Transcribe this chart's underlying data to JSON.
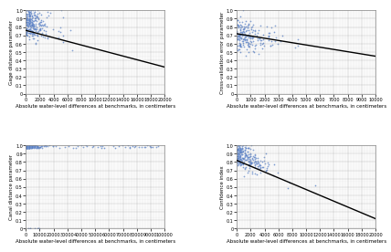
{
  "fig_width": 4.3,
  "fig_height": 2.78,
  "dpi": 100,
  "background_color": "#ffffff",
  "grid_color": "#c8c8c8",
  "dot_color": "#4472c4",
  "line_color": "#000000",
  "dot_size": 1.5,
  "dot_alpha": 0.8,
  "subplots": [
    {
      "ylabel": "Gage distance parameter",
      "xlabel": "Absolute water-level differences at benchmarks, in centimeters",
      "xlim": [
        0,
        20000
      ],
      "ylim": [
        0,
        1
      ],
      "ytick_count": 11,
      "xticks": [
        0,
        2000,
        4000,
        6000,
        8000,
        10000,
        12000,
        14000,
        16000,
        18000,
        20000
      ],
      "trend_start_y": 0.76,
      "trend_end_y": 0.32,
      "n_points": 250,
      "x_scale": 1200,
      "y_intercept": 0.88,
      "y_slope": -2.8e-05,
      "y_noise": 0.1
    },
    {
      "ylabel": "Cross-validation error parameter",
      "xlabel": "Absolute water-level differences at benchmarks, in centimeters",
      "xlim": [
        0,
        10000
      ],
      "ylim": [
        0,
        1
      ],
      "ytick_count": 11,
      "xticks": [
        0,
        1000,
        2000,
        3000,
        4000,
        5000,
        6000,
        7000,
        8000,
        9000,
        10000
      ],
      "trend_start_y": 0.72,
      "trend_end_y": 0.45,
      "n_points": 200,
      "x_scale": 800,
      "y_intercept": 0.72,
      "y_slope": -2.7e-05,
      "y_noise": 0.09
    },
    {
      "ylabel": "Canal distance parameter",
      "xlabel": "Absolute water-level differences at benchmarks, in centimeters",
      "xlim": [
        0,
        100000
      ],
      "ylim": [
        0,
        1
      ],
      "ytick_count": 11,
      "xticks": [
        0,
        10000,
        20000,
        30000,
        40000,
        50000,
        60000,
        70000,
        80000,
        90000,
        100000
      ],
      "has_trend": false
    },
    {
      "ylabel": "Confidence index",
      "xlabel": "Absolute water-level differences at benchmarks, in centimeters",
      "xlim": [
        0,
        20000
      ],
      "ylim": [
        0,
        1
      ],
      "ytick_count": 11,
      "xticks": [
        0,
        2000,
        4000,
        6000,
        8000,
        10000,
        12000,
        14000,
        16000,
        18000,
        20000
      ],
      "trend_start_y": 0.82,
      "trend_end_y": 0.12,
      "n_points": 250,
      "x_scale": 1500,
      "y_intercept": 0.9,
      "y_slope": -3.8e-05,
      "y_noise": 0.08,
      "has_trend": true
    }
  ],
  "label_fontsize": 4.0,
  "tick_fontsize": 3.5,
  "ylabel_fontsize": 4.0,
  "minor_grid_color": "#e0e0e0",
  "major_grid_color": "#b0b0b0"
}
